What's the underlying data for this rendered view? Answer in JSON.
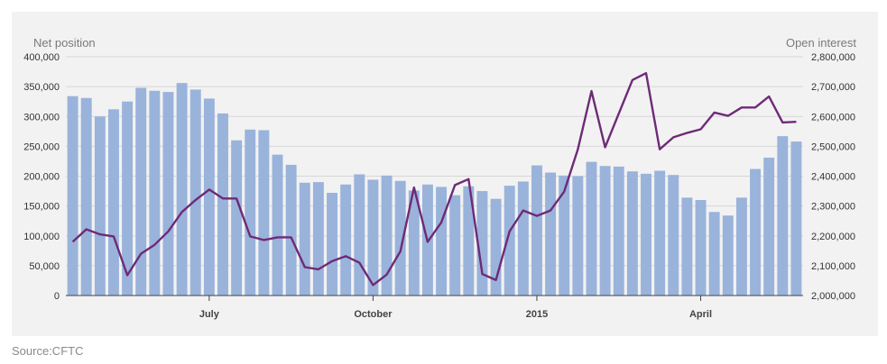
{
  "chart_data": {
    "type": "bar+line",
    "left_axis_label": "Net position",
    "right_axis_label": "Open interest",
    "source": "Source:CFTC",
    "x_ticks": [
      "July",
      "October",
      "2015",
      "April"
    ],
    "left_axis": {
      "min": 0,
      "max": 400000,
      "step": 50000,
      "ticks": [
        "0",
        "50,000",
        "100,000",
        "150,000",
        "200,000",
        "250,000",
        "300,000",
        "350,000",
        "400,000"
      ]
    },
    "right_axis": {
      "min": 2000000,
      "max": 2800000,
      "step": 100000,
      "ticks": [
        "2,000,000",
        "2,100,000",
        "2,200,000",
        "2,300,000",
        "2,400,000",
        "2,500,000",
        "2,600,000",
        "2,700,000",
        "2,800,000"
      ]
    },
    "series": [
      {
        "name": "Net position",
        "kind": "bar",
        "axis": "left",
        "color": "#9ab3db",
        "values": [
          334000,
          331000,
          300000,
          312000,
          325000,
          348000,
          343000,
          341000,
          356000,
          345000,
          330000,
          305000,
          260000,
          278000,
          277000,
          236000,
          219000,
          189000,
          190000,
          172000,
          186000,
          203000,
          194000,
          201000,
          192000,
          176000,
          186000,
          182000,
          168000,
          183000,
          175000,
          162000,
          184000,
          191000,
          218000,
          206000,
          201000,
          200000,
          224000,
          217000,
          216000,
          208000,
          204000,
          209000,
          202000,
          164000,
          160000,
          140000,
          134000,
          164000,
          212000,
          231000,
          267000,
          258000
        ]
      },
      {
        "name": "Open interest",
        "kind": "line",
        "axis": "right",
        "color": "#6e2a78",
        "values": [
          2180000,
          2222000,
          2205000,
          2198000,
          2068000,
          2140000,
          2170000,
          2215000,
          2280000,
          2320000,
          2355000,
          2325000,
          2325000,
          2198000,
          2186000,
          2195000,
          2195000,
          2095000,
          2088000,
          2115000,
          2132000,
          2110000,
          2035000,
          2070000,
          2148000,
          2362000,
          2180000,
          2245000,
          2370000,
          2390000,
          2072000,
          2052000,
          2215000,
          2285000,
          2267000,
          2285000,
          2348000,
          2490000,
          2685000,
          2497000,
          2610000,
          2722000,
          2745000,
          2490000,
          2530000,
          2545000,
          2557000,
          2613000,
          2602000,
          2630000,
          2630000,
          2667000,
          2580000,
          2582000
        ]
      }
    ]
  }
}
